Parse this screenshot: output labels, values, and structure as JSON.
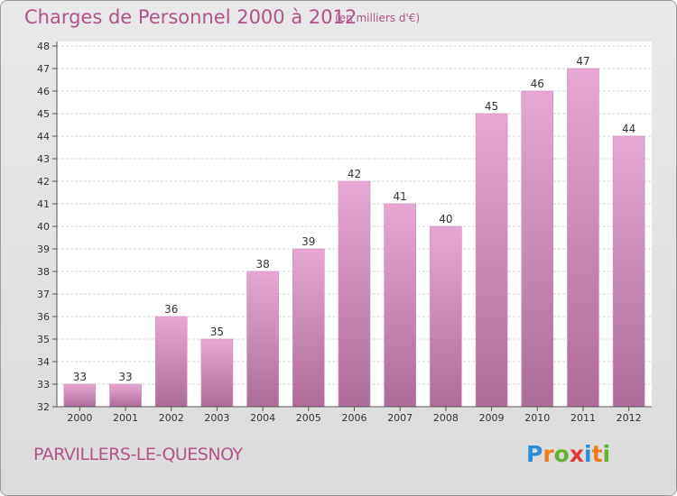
{
  "header": {
    "title": "Charges de Personnel 2000 à 2012",
    "subtitle": "(en milliers d'€)"
  },
  "footer": {
    "commune": "PARVILLERS-LE-QUESNOY",
    "logo": "Proxiti"
  },
  "colors": {
    "accent": "#b0548a",
    "bar_top": "#e6a8d3",
    "bar_bottom": "#ad6c98"
  },
  "chart_data": {
    "type": "bar",
    "title": "Charges de Personnel 2000 à 2012",
    "subtitle": "(en milliers d'€)",
    "categories": [
      "2000",
      "2001",
      "2002",
      "2003",
      "2004",
      "2005",
      "2006",
      "2007",
      "2008",
      "2009",
      "2010",
      "2011",
      "2012"
    ],
    "values": [
      33,
      33,
      36,
      35,
      38,
      39,
      42,
      41,
      40,
      45,
      46,
      47,
      44
    ],
    "ylim": [
      32,
      48
    ],
    "yticks": [
      32,
      33,
      34,
      35,
      36,
      37,
      38,
      39,
      40,
      41,
      42,
      43,
      44,
      45,
      46,
      47,
      48
    ],
    "grid": true,
    "data_labels": true
  }
}
